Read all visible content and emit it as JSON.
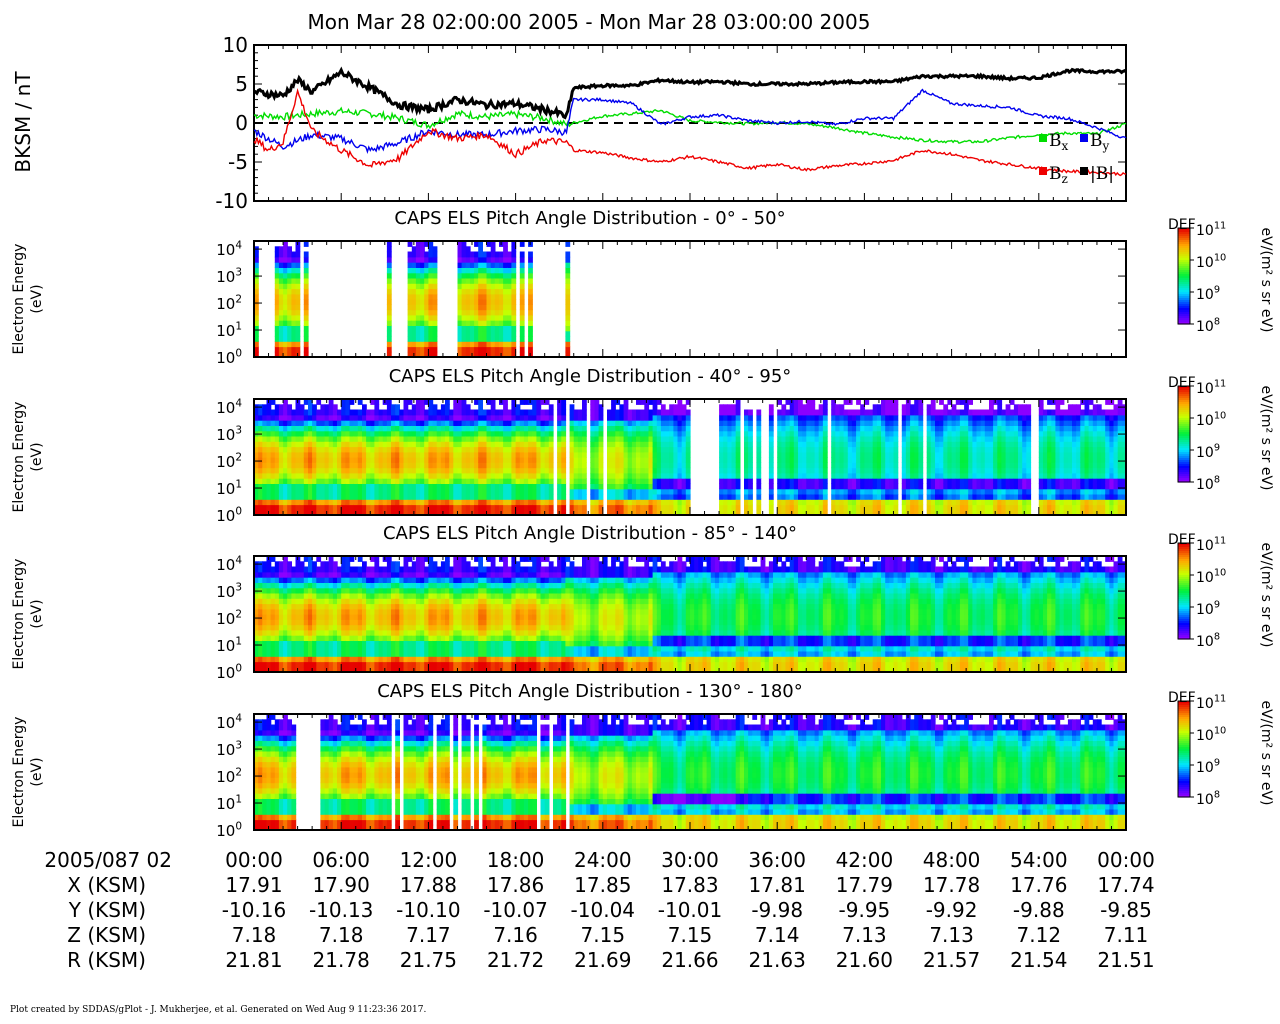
{
  "title": "Mon Mar 28 02:00:00 2005 - Mon Mar 28 03:00:00 2005",
  "colors": {
    "bx": "#00dd00",
    "by": "#0000ee",
    "bz": "#ee0000",
    "bmag": "#000000",
    "background": "#ffffff"
  },
  "chart_data": [
    {
      "type": "line",
      "ylabel": "B_KSM / nT",
      "ylim": [
        -10,
        10
      ],
      "yticks": [
        "10",
        "5",
        "0",
        "-5",
        "-10"
      ],
      "xlim_minutes": [
        0,
        60
      ],
      "zero_line": "dashed",
      "legend": [
        "B_x",
        "B_y",
        "B_z",
        "|B|"
      ],
      "legend_placement": "bottom-right",
      "series": [
        {
          "name": "B_x",
          "color": "#00dd00",
          "x": [
            0,
            2,
            4,
            6,
            8,
            10,
            12,
            14,
            16,
            18,
            20,
            21.5,
            24,
            26,
            28,
            30,
            32,
            34,
            36,
            38,
            40,
            42,
            44,
            46,
            48,
            50,
            52,
            54,
            56,
            58,
            60
          ],
          "y": [
            1,
            0.8,
            1.2,
            1.5,
            1.2,
            0.6,
            -0.3,
            1.2,
            0.8,
            1.1,
            0.6,
            -0.2,
            0.9,
            1.2,
            1.6,
            0.3,
            0.1,
            -0.1,
            0.1,
            -0.1,
            -0.6,
            -1.3,
            -1.8,
            -2.2,
            -2.4,
            -2.4,
            -1.9,
            -1.5,
            -1.3,
            -1.4,
            -0.1
          ]
        },
        {
          "name": "B_y",
          "color": "#0000ee",
          "x": [
            0,
            2,
            4,
            6,
            8,
            10,
            12,
            14,
            16,
            18,
            20,
            21.5,
            22,
            24,
            26,
            28,
            30,
            32,
            34,
            36,
            38,
            40,
            42,
            44,
            46,
            48,
            50,
            52,
            54,
            56,
            58,
            60
          ],
          "y": [
            -1,
            -3,
            -1.5,
            -2,
            -3.5,
            -2.5,
            -1,
            -1.5,
            -1.5,
            -1,
            -0.8,
            -1.2,
            3,
            3,
            2.5,
            -0.2,
            0.8,
            1,
            0.3,
            0,
            0.2,
            -0.2,
            0.6,
            0.6,
            4.2,
            2.5,
            2.2,
            2,
            0.9,
            0.6,
            -0.6,
            -2
          ]
        },
        {
          "name": "B_z",
          "color": "#ee0000",
          "x": [
            0,
            1,
            2,
            3,
            4,
            6,
            8,
            10,
            12,
            14,
            16,
            18,
            20,
            21.5,
            22,
            24,
            26,
            28,
            30,
            32,
            34,
            36,
            38,
            40,
            42,
            44,
            46,
            48,
            50,
            52,
            54,
            56,
            58,
            60
          ],
          "y": [
            -2,
            -3.5,
            -2.5,
            4,
            -1,
            -3.5,
            -5.5,
            -4.5,
            -1,
            -2,
            -1.5,
            -4,
            -2.2,
            -2.5,
            -3.5,
            -3.8,
            -4.5,
            -5,
            -4.3,
            -5,
            -5.8,
            -5.3,
            -6,
            -5.5,
            -5.2,
            -4.8,
            -3.5,
            -4,
            -4.8,
            -5.3,
            -5.8,
            -6.2,
            -6.3,
            -6.6
          ]
        },
        {
          "name": "|B|",
          "color": "#000000",
          "x": [
            0,
            2,
            3,
            4,
            6,
            8,
            10,
            12,
            14,
            16,
            18,
            20,
            21,
            21.5,
            22,
            24,
            26,
            28,
            30,
            32,
            34,
            36,
            38,
            40,
            42,
            44,
            46,
            48,
            50,
            52,
            54,
            56,
            58,
            60
          ],
          "y": [
            4,
            3.5,
            5.5,
            4,
            6.5,
            4.5,
            2.3,
            1.7,
            3,
            2.3,
            2.5,
            1.7,
            1.2,
            0.8,
            4.5,
            4.8,
            4.8,
            5.5,
            5.2,
            5.3,
            5,
            5,
            5,
            5.2,
            5.3,
            5.3,
            6,
            6,
            6,
            5.7,
            5.8,
            6.7,
            6.6,
            6.6
          ]
        }
      ]
    },
    {
      "type": "heatmap",
      "title": "CAPS ELS Pitch Angle Distribution - 0° - 50°",
      "ylabel": "Electron Energy (eV)",
      "ylim_log10": [
        0,
        4.3
      ],
      "yticks": [
        "10^4",
        "10^3",
        "10^2",
        "10^1",
        "10^0"
      ],
      "colorbar_label": "DEF",
      "colorbar_units": "eV/(m² s sr eV)",
      "colorbar_range_log10": [
        8,
        11
      ],
      "coverage_minutes": [
        [
          0,
          0.3
        ],
        [
          1.5,
          3
        ],
        [
          3.5,
          3.8
        ],
        [
          9.2,
          9.5
        ],
        [
          10.5,
          12.5
        ],
        [
          14,
          15
        ],
        [
          15.2,
          17
        ],
        [
          17.2,
          18
        ],
        [
          18.3,
          18.6
        ],
        [
          18.8,
          19.2
        ],
        [
          21.4,
          21.6
        ]
      ]
    },
    {
      "type": "heatmap",
      "title": "CAPS ELS Pitch Angle Distribution - 40° - 95°",
      "ylabel": "Electron Energy (eV)",
      "ylim_log10": [
        0,
        4.3
      ],
      "yticks": [
        "10^4",
        "10^3",
        "10^2",
        "10^1",
        "10^0"
      ],
      "colorbar_label": "DEF",
      "colorbar_units": "eV/(m² s sr eV)",
      "colorbar_range_log10": [
        8,
        11
      ],
      "gaps_minutes": [
        [
          20.5,
          20.8
        ],
        [
          21.5,
          21.8
        ],
        [
          23,
          23.2
        ],
        [
          24.1,
          24.3
        ],
        [
          26.2,
          26.4
        ],
        [
          30,
          32
        ],
        [
          33.5,
          33.8
        ],
        [
          34.2,
          34.6
        ],
        [
          35,
          35.3
        ],
        [
          35.7,
          36
        ],
        [
          39.5,
          39.8
        ],
        [
          44.2,
          44.5
        ],
        [
          46,
          46.3
        ],
        [
          53.5,
          53.9
        ]
      ]
    },
    {
      "type": "heatmap",
      "title": "CAPS ELS Pitch Angle Distribution - 85° - 140°",
      "ylabel": "Electron Energy (eV)",
      "ylim_log10": [
        0,
        4.3
      ],
      "yticks": [
        "10^4",
        "10^3",
        "10^2",
        "10^1",
        "10^0"
      ],
      "colorbar_label": "DEF",
      "colorbar_units": "eV/(m² s sr eV)",
      "colorbar_range_log10": [
        8,
        11
      ]
    },
    {
      "type": "heatmap",
      "title": "CAPS ELS Pitch Angle Distribution - 130° - 180°",
      "ylabel": "Electron Energy (eV)",
      "ylim_log10": [
        0,
        4.3
      ],
      "yticks": [
        "10^4",
        "10^3",
        "10^2",
        "10^1",
        "10^0"
      ],
      "colorbar_label": "DEF",
      "colorbar_units": "eV/(m² s sr eV)",
      "colorbar_range_log10": [
        8,
        11
      ],
      "gaps_minutes": [
        [
          2.8,
          4.5
        ],
        [
          9.4,
          9.6
        ],
        [
          10,
          10.2
        ],
        [
          12.3,
          12.5
        ],
        [
          13.5,
          13.7
        ],
        [
          14,
          14.3
        ],
        [
          15,
          15.2
        ],
        [
          15.4,
          15.7
        ],
        [
          16.2,
          16.4
        ],
        [
          19.5,
          19.7
        ],
        [
          20.4,
          20.6
        ],
        [
          21.3,
          21.6
        ]
      ]
    }
  ],
  "ephemeris": {
    "date_label": "2005/087 02",
    "rows": [
      {
        "label": "X (KSM)",
        "values": [
          "17.91",
          "17.90",
          "17.88",
          "17.86",
          "17.85",
          "17.83",
          "17.81",
          "17.79",
          "17.78",
          "17.76",
          "17.74"
        ]
      },
      {
        "label": "Y (KSM)",
        "values": [
          "-10.16",
          "-10.13",
          "-10.10",
          "-10.07",
          "-10.04",
          "-10.01",
          "-9.98",
          "-9.95",
          "-9.92",
          "-9.88",
          "-9.85"
        ]
      },
      {
        "label": "Z (KSM)",
        "values": [
          "7.18",
          "7.18",
          "7.17",
          "7.16",
          "7.15",
          "7.15",
          "7.14",
          "7.13",
          "7.13",
          "7.12",
          "7.11"
        ]
      },
      {
        "label": "R (KSM)",
        "values": [
          "21.81",
          "21.78",
          "21.75",
          "21.72",
          "21.69",
          "21.66",
          "21.63",
          "21.60",
          "21.57",
          "21.54",
          "21.51"
        ]
      }
    ],
    "time_ticks": [
      "00:00",
      "06:00",
      "12:00",
      "18:00",
      "24:00",
      "30:00",
      "36:00",
      "42:00",
      "48:00",
      "54:00",
      "00:00"
    ]
  },
  "footer": "Plot created by SDDAS/gPlot - J. Mukherjee, et al.  Generated on Wed Aug 9 11:23:36 2017."
}
